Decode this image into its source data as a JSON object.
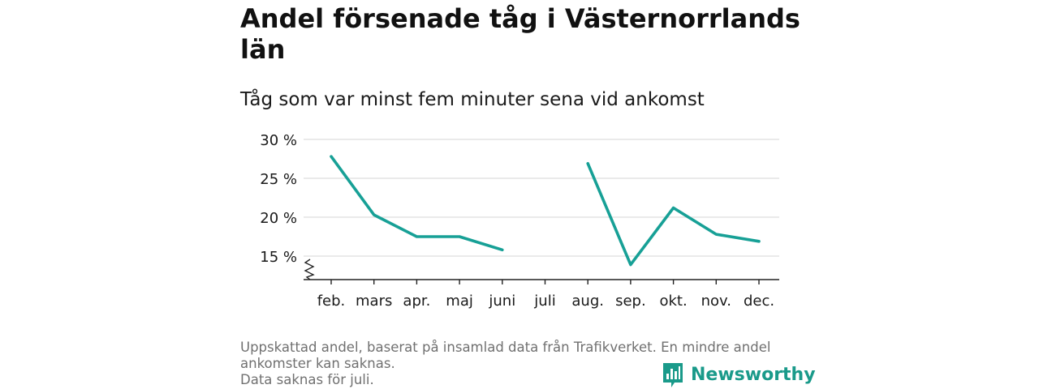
{
  "title": "Andel försenade tåg i Västernorrlands län",
  "subtitle": "Tåg som var minst fem minuter sena vid ankomst",
  "notes": [
    "Uppskattad andel, baserat på insamlad data från Trafikverket. En mindre andel ankomster kan saknas.",
    "Data saknas för juli."
  ],
  "brand": {
    "name": "Newsworthy",
    "icon": "bar-chart-speech-bubble-icon"
  },
  "colors": {
    "line": "#17a096",
    "grid": "#dddddd",
    "axis": "#222222",
    "note": "#707070",
    "brand": "#1a9a8a"
  },
  "chart_data": {
    "type": "line",
    "categories": [
      "feb.",
      "mars",
      "apr.",
      "maj",
      "juni",
      "juli",
      "aug.",
      "sep.",
      "okt.",
      "nov.",
      "dec."
    ],
    "series": [
      {
        "values": [
          27.8,
          20.3,
          17.5,
          17.5,
          15.8,
          null,
          26.9,
          13.9,
          21.2,
          17.8,
          16.9
        ]
      }
    ],
    "yticks": [
      15,
      20,
      25,
      30
    ],
    "ytick_labels": [
      "15 %",
      "20 %",
      "25 %",
      "30 %"
    ],
    "ylim": [
      12,
      30
    ],
    "y_axis_break": true,
    "grid": true,
    "xlabel": "",
    "ylabel": ""
  }
}
